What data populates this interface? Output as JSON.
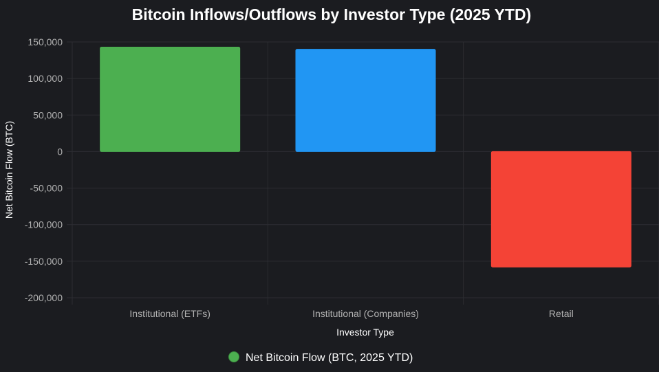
{
  "chart_data": {
    "type": "bar",
    "title": "Bitcoin Inflows/Outflows by Investor Type (2025 YTD)",
    "xlabel": "Investor Type",
    "ylabel": "Net Bitcoin Flow (BTC)",
    "categories": [
      "Institutional (ETFs)",
      "Institutional (Companies)",
      "Retail"
    ],
    "series": [
      {
        "name": "Net Bitcoin Flow (BTC, 2025 YTD)",
        "values": [
          143000,
          140000,
          -158000
        ],
        "colors": [
          "#4caf50",
          "#2196f3",
          "#f44336"
        ]
      }
    ],
    "ylim": [
      -200000,
      150000
    ],
    "yticks": [
      150000,
      100000,
      50000,
      0,
      -50000,
      -100000,
      -150000,
      -200000
    ],
    "ytick_labels": [
      "150,000",
      "100,000",
      "50,000",
      "0",
      "-50,000",
      "-100,000",
      "-150,000",
      "-200,000"
    ],
    "grid": true,
    "legend_position": "bottom",
    "legend_color": "#4caf50"
  }
}
